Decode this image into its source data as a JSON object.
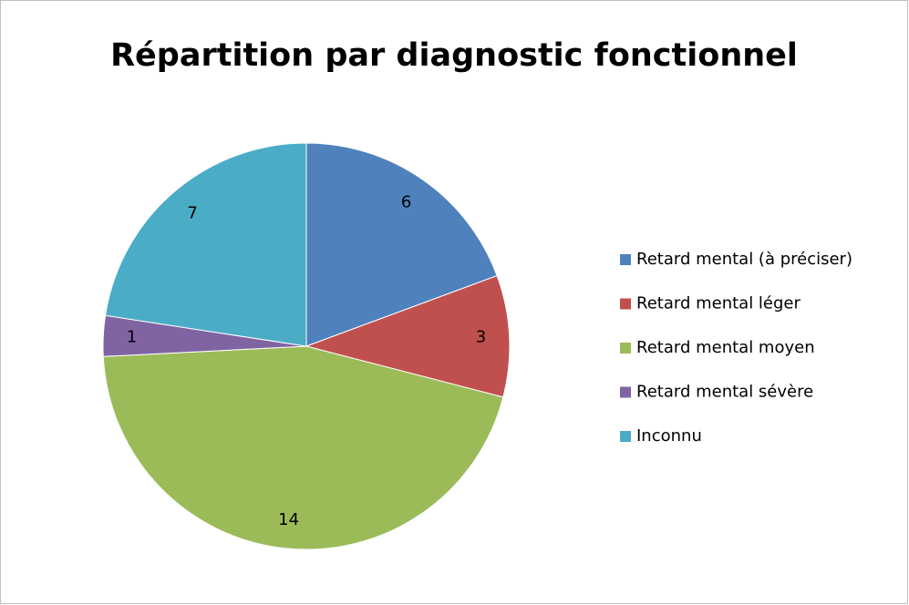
{
  "chart_data": {
    "type": "pie",
    "title": "Répartition par diagnostic fonctionnel",
    "categories": [
      "Retard mental (à préciser)",
      "Retard mental léger",
      "Retard mental moyen",
      "Retard mental sévère",
      "Inconnu"
    ],
    "values": [
      6,
      3,
      14,
      1,
      7
    ],
    "colors": [
      "#4f81bd",
      "#c0504d",
      "#9bbb59",
      "#8064a2",
      "#4bacc6"
    ],
    "legend": "right"
  }
}
